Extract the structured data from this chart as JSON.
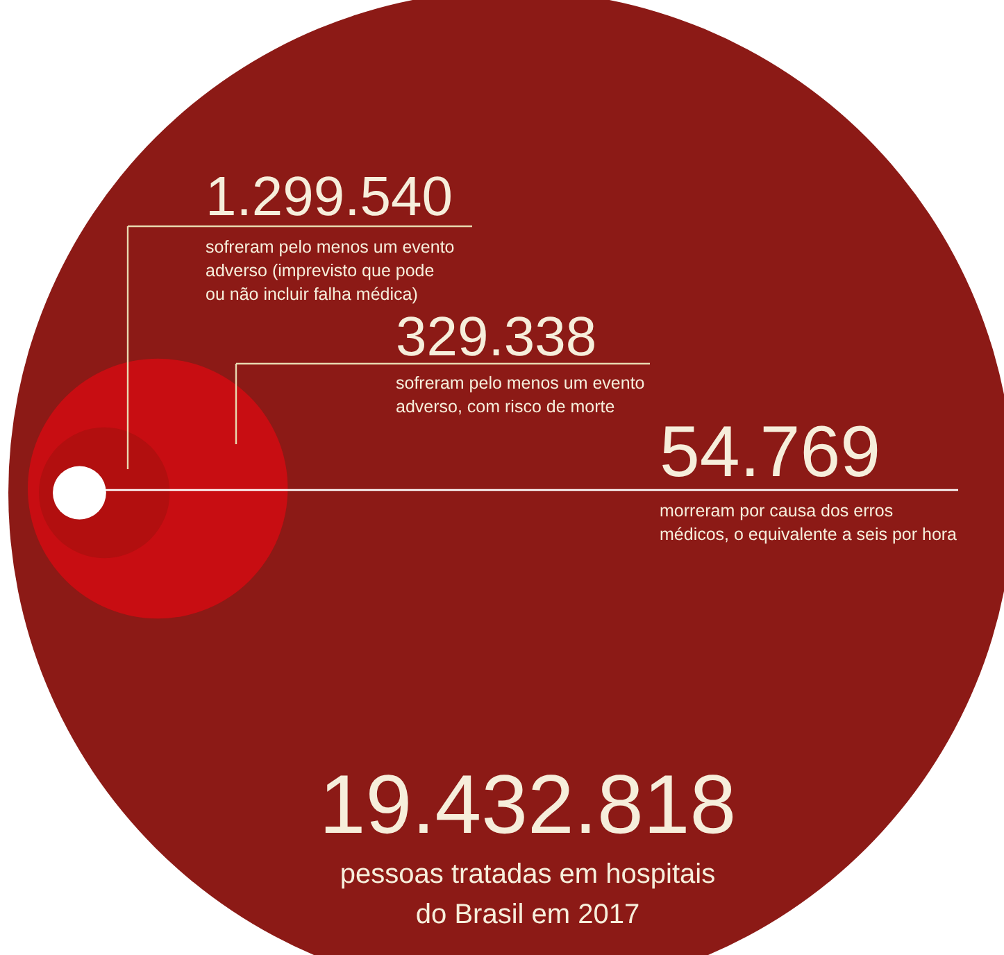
{
  "chart_data": {
    "type": "other",
    "categories": [
      "pessoas tratadas em hospitais do Brasil em 2017",
      "sofreram pelo menos um evento adverso (imprevisto que pode ou não incluir falha médica)",
      "sofreram pelo menos um evento adverso, com risco de morte",
      "morreram por causa dos erros médicos, o equivalente a seis por hora"
    ],
    "values": [
      19432818,
      1299540,
      329338,
      54769
    ],
    "value_labels": [
      "19.432.818",
      "1.299.540",
      "329.338",
      "54.769"
    ],
    "colors": [
      "#8c1a16",
      "#c80d12",
      "#b20f0f",
      "#ffffff"
    ]
  }
}
